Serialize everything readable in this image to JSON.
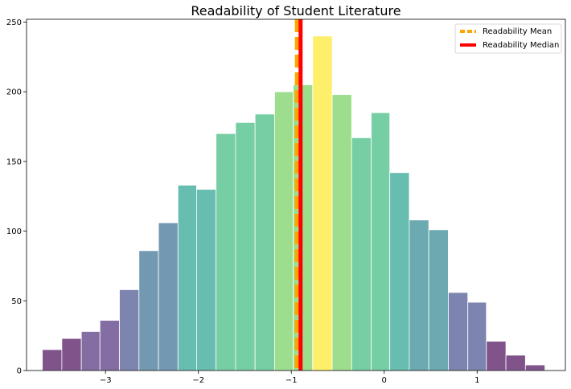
{
  "chart_data": {
    "type": "bar",
    "title": "Readability of Student Literature",
    "xlabel": "",
    "ylabel": "",
    "xlim": [
      -3.85,
      1.95
    ],
    "ylim": [
      0,
      252
    ],
    "xticks": [
      -3,
      -2,
      -1,
      0,
      1
    ],
    "xtick_labels": [
      "−3",
      "−2",
      "−1",
      "0",
      "1"
    ],
    "yticks": [
      0,
      50,
      100,
      150,
      200,
      250
    ],
    "ytick_labels": [
      "0",
      "50",
      "100",
      "150",
      "200",
      "250"
    ],
    "grid": false,
    "bin_edges": [
      -3.68,
      -3.47,
      -3.26,
      -3.06,
      -2.85,
      -2.64,
      -2.43,
      -2.22,
      -2.02,
      -1.81,
      -1.6,
      -1.39,
      -1.18,
      -0.98,
      -0.77,
      -0.56,
      -0.35,
      -0.14,
      0.06,
      0.27,
      0.48,
      0.69,
      0.9,
      1.1,
      1.31,
      1.52,
      1.73
    ],
    "values": [
      15,
      23,
      28,
      36,
      58,
      86,
      106,
      133,
      130,
      170,
      178,
      184,
      200,
      205,
      240,
      198,
      167,
      185,
      142,
      108,
      101,
      56,
      49,
      21,
      11,
      4
    ],
    "bar_colors": [
      "#440154",
      "#440154",
      "#482878",
      "#482878",
      "#3e4a89",
      "#31688e",
      "#31688e",
      "#1f9e89",
      "#1f9e89",
      "#35b779",
      "#35b779",
      "#35b779",
      "#6ece58",
      "#6ece58",
      "#fde725",
      "#6ece58",
      "#35b779",
      "#35b779",
      "#1f9e89",
      "#26828e",
      "#26828e",
      "#3e4a89",
      "#3e4a89",
      "#440154",
      "#440154",
      "#440154"
    ],
    "bar_alpha": 0.68,
    "bar_edge_color": "#ffffff",
    "reference_lines": [
      {
        "name": "Readability Mean",
        "x": -0.94,
        "color": "#ffa500",
        "style": "dashed"
      },
      {
        "name": "Readability Median",
        "x": -0.9,
        "color": "#ff0000",
        "style": "solid"
      }
    ],
    "legend": {
      "placement": "top-right",
      "entries": [
        "Readability Mean",
        "Readability Median"
      ]
    }
  }
}
